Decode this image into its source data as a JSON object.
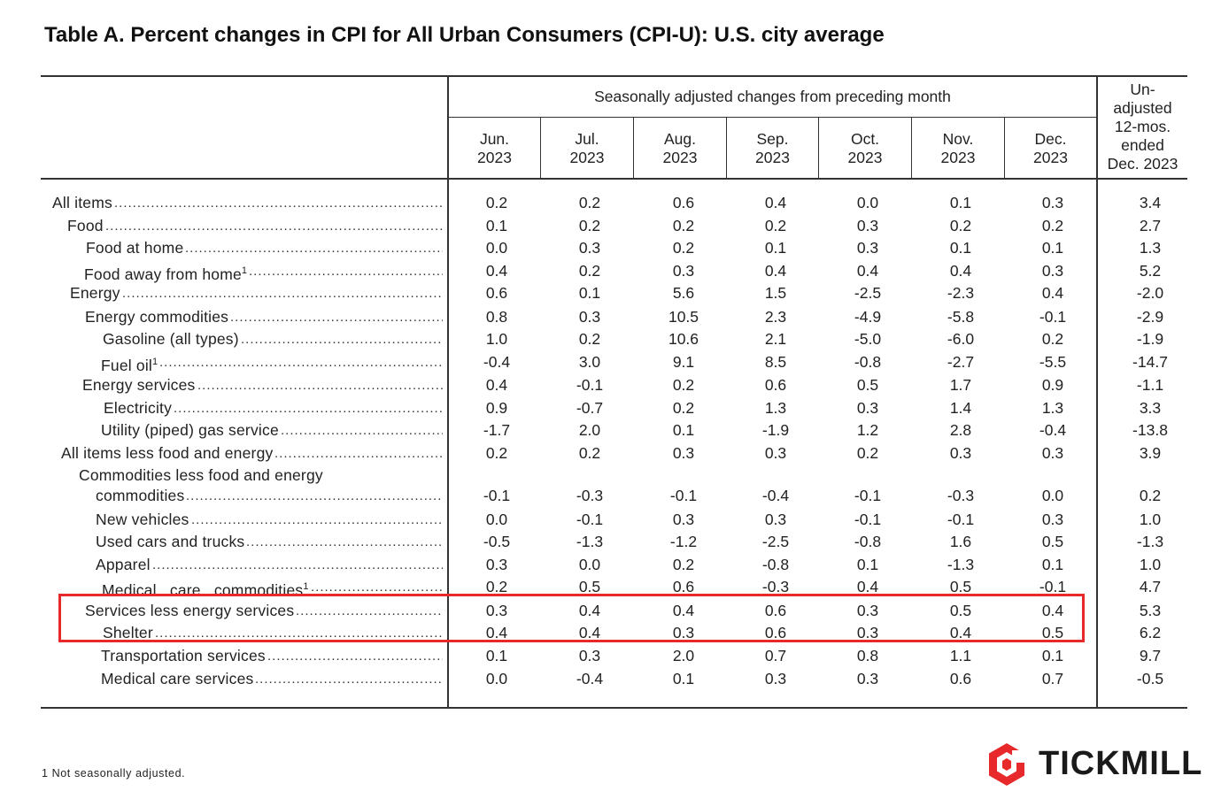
{
  "title": "Table A. Percent changes in CPI for All Urban Consumers (CPI-U): U.S. city average",
  "header": {
    "group_label": "Seasonally adjusted changes from preceding month",
    "months": [
      {
        "month": "Jun.",
        "year": "2023"
      },
      {
        "month": "Jul.",
        "year": "2023"
      },
      {
        "month": "Aug.",
        "year": "2023"
      },
      {
        "month": "Sep.",
        "year": "2023"
      },
      {
        "month": "Oct.",
        "year": "2023"
      },
      {
        "month": "Nov.",
        "year": "2023"
      },
      {
        "month": "Dec.",
        "year": "2023"
      }
    ],
    "unadjusted": [
      "Un-",
      "adjusted",
      "12-mos.",
      "ended",
      "Dec. 2023"
    ]
  },
  "rows": [
    {
      "label": "All items",
      "values": [
        "0.2",
        "0.2",
        "0.6",
        "0.4",
        "0.0",
        "0.1",
        "0.3",
        "3.4"
      ]
    },
    {
      "label": "Food",
      "values": [
        "0.1",
        "0.2",
        "0.2",
        "0.2",
        "0.3",
        "0.2",
        "0.2",
        "2.7"
      ]
    },
    {
      "label": "Food at home",
      "values": [
        "0.0",
        "0.3",
        "0.2",
        "0.1",
        "0.3",
        "0.1",
        "0.1",
        "1.3"
      ]
    },
    {
      "label": "Food away from home",
      "sup": "1",
      "values": [
        "0.4",
        "0.2",
        "0.3",
        "0.4",
        "0.4",
        "0.4",
        "0.3",
        "5.2"
      ]
    },
    {
      "label": "Energy",
      "values": [
        "0.6",
        "0.1",
        "5.6",
        "1.5",
        "-2.5",
        "-2.3",
        "0.4",
        "-2.0"
      ]
    },
    {
      "label": "Energy commodities",
      "values": [
        "0.8",
        "0.3",
        "10.5",
        "2.3",
        "-4.9",
        "-5.8",
        "-0.1",
        "-2.9"
      ]
    },
    {
      "label": "Gasoline (all types)",
      "values": [
        "1.0",
        "0.2",
        "10.6",
        "2.1",
        "-5.0",
        "-6.0",
        "0.2",
        "-1.9"
      ]
    },
    {
      "label": "Fuel oil",
      "sup": "1",
      "values": [
        "-0.4",
        "3.0",
        "9.1",
        "8.5",
        "-0.8",
        "-2.7",
        "-5.5",
        "-14.7"
      ]
    },
    {
      "label": "Energy services",
      "values": [
        "0.4",
        "-0.1",
        "0.2",
        "0.6",
        "0.5",
        "1.7",
        "0.9",
        "-1.1"
      ]
    },
    {
      "label": "Electricity",
      "values": [
        "0.9",
        "-0.7",
        "0.2",
        "1.3",
        "0.3",
        "1.4",
        "1.3",
        "3.3"
      ]
    },
    {
      "label": "Utility (piped) gas service",
      "values": [
        "-1.7",
        "2.0",
        "0.1",
        "-1.9",
        "1.2",
        "2.8",
        "-0.4",
        "-13.8"
      ]
    },
    {
      "label": "All items less food and energy",
      "values": [
        "0.2",
        "0.2",
        "0.3",
        "0.3",
        "0.2",
        "0.3",
        "0.3",
        "3.9"
      ]
    },
    {
      "label": "Commodities less food and energy",
      "label2": "commodities",
      "values": [
        "-0.1",
        "-0.3",
        "-0.1",
        "-0.4",
        "-0.1",
        "-0.3",
        "0.0",
        "0.2"
      ]
    },
    {
      "label": "New vehicles",
      "values": [
        "0.0",
        "-0.1",
        "0.3",
        "0.3",
        "-0.1",
        "-0.1",
        "0.3",
        "1.0"
      ]
    },
    {
      "label": "Used cars and trucks",
      "values": [
        "-0.5",
        "-1.3",
        "-1.2",
        "-2.5",
        "-0.8",
        "1.6",
        "0.5",
        "-1.3"
      ]
    },
    {
      "label": "Apparel",
      "values": [
        "0.3",
        "0.0",
        "0.2",
        "-0.8",
        "0.1",
        "-1.3",
        "0.1",
        "1.0"
      ]
    },
    {
      "label": "Medical   care   commodities",
      "sup": "1",
      "values": [
        "0.2",
        "0.5",
        "0.6",
        "-0.3",
        "0.4",
        "0.5",
        "-0.1",
        "4.7"
      ]
    },
    {
      "label": "Services less energy services",
      "values": [
        "0.3",
        "0.4",
        "0.4",
        "0.6",
        "0.3",
        "0.5",
        "0.4",
        "5.3"
      ]
    },
    {
      "label": "Shelter",
      "values": [
        "0.4",
        "0.4",
        "0.3",
        "0.6",
        "0.3",
        "0.4",
        "0.5",
        "6.2"
      ]
    },
    {
      "label": "Transportation services",
      "values": [
        "0.1",
        "0.3",
        "2.0",
        "0.7",
        "0.8",
        "1.1",
        "0.1",
        "9.7"
      ]
    },
    {
      "label": "Medical care services",
      "values": [
        "0.0",
        "-0.4",
        "0.1",
        "0.3",
        "0.3",
        "0.6",
        "0.7",
        "-0.5"
      ]
    }
  ],
  "footnote": "1  Not seasonally adjusted.",
  "brand": {
    "name": "TICKMILL",
    "accent": "#e8292b"
  },
  "highlight_color": "#e8292b"
}
